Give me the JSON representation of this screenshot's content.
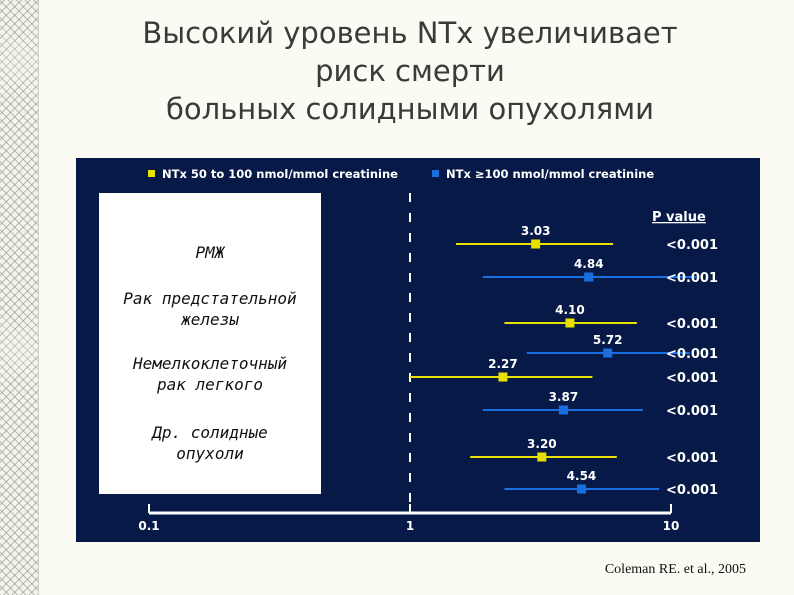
{
  "slide": {
    "title_lines": [
      "Высокий уровень NTx увеличивает",
      "риск смерти",
      "больных солидными опухолями"
    ],
    "citation": "Coleman RE. et al., 2005"
  },
  "chart_data": {
    "type": "forest",
    "x_scale": "log",
    "xlim": [
      0.1,
      10
    ],
    "x_ticks": [
      "0.1",
      "1",
      "10"
    ],
    "reference_line": 1,
    "p_value_header": "P value",
    "legend": [
      {
        "label": "NTx 50 to 100 nmol/mmol creatinine",
        "color": "#e8e000"
      },
      {
        "label": "NTx ≥100 nmol/mmol creatinine",
        "color": "#1a6fe0"
      }
    ],
    "groups": [
      {
        "label_lines": [
          "РМЖ"
        ]
      },
      {
        "label_lines": [
          "Рак предстательной",
          "железы"
        ]
      },
      {
        "label_lines": [
          "Немелкоклеточный",
          "рак легкого"
        ]
      },
      {
        "label_lines": [
          "Др. солидные",
          "опухоли"
        ]
      }
    ],
    "rows": [
      {
        "group": 0,
        "series": 0,
        "value": 3.03,
        "value_label": "3.03",
        "ci": [
          1.5,
          6.0
        ],
        "p": "<0.001"
      },
      {
        "group": 0,
        "series": 1,
        "value": 4.84,
        "value_label": "4.84",
        "ci": [
          1.9,
          12.5
        ],
        "p": "<0.001"
      },
      {
        "group": 1,
        "series": 0,
        "value": 4.1,
        "value_label": "4.10",
        "ci": [
          2.3,
          7.4
        ],
        "p": "<0.001"
      },
      {
        "group": 1,
        "series": 1,
        "value": 5.72,
        "value_label": "5.72",
        "ci": [
          2.8,
          11.8
        ],
        "p": "<0.001"
      },
      {
        "group": 2,
        "series": 0,
        "value": 2.27,
        "value_label": "2.27",
        "ci": [
          1.0,
          5.0
        ],
        "p": "<0.001"
      },
      {
        "group": 2,
        "series": 1,
        "value": 3.87,
        "value_label": "3.87",
        "ci": [
          1.9,
          7.8
        ],
        "p": "<0.001"
      },
      {
        "group": 3,
        "series": 0,
        "value": 3.2,
        "value_label": "3.20",
        "ci": [
          1.7,
          6.2
        ],
        "p": "<0.001"
      },
      {
        "group": 3,
        "series": 1,
        "value": 4.54,
        "value_label": "4.54",
        "ci": [
          2.3,
          9.0
        ],
        "p": "<0.001"
      }
    ]
  }
}
